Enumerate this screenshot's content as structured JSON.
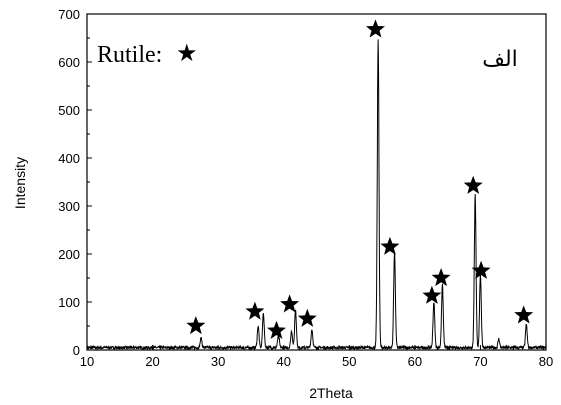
{
  "chart_data": {
    "type": "line",
    "xlabel": "2Theta",
    "ylabel": "Intensity",
    "xlim": [
      10,
      80
    ],
    "ylim": [
      0,
      700
    ],
    "x_ticks": [
      10,
      20,
      30,
      40,
      50,
      60,
      70,
      80
    ],
    "y_ticks": [
      0,
      100,
      200,
      300,
      400,
      500,
      600,
      700
    ],
    "grid": false,
    "legend": {
      "label": "Rutile:",
      "symbol": "★",
      "position": "top-left"
    },
    "corner_label": "الف",
    "series": [
      {
        "color": "#000000",
        "baseline": 5,
        "peaks": [
          {
            "x": 27.4,
            "y": 20
          },
          {
            "x": 36.1,
            "y": 45
          },
          {
            "x": 36.9,
            "y": 72
          },
          {
            "x": 39.2,
            "y": 25
          },
          {
            "x": 41.2,
            "y": 35
          },
          {
            "x": 41.8,
            "y": 80
          },
          {
            "x": 44.3,
            "y": 38
          },
          {
            "x": 54.4,
            "y": 640
          },
          {
            "x": 56.9,
            "y": 200
          },
          {
            "x": 62.9,
            "y": 95
          },
          {
            "x": 64.2,
            "y": 130
          },
          {
            "x": 69.2,
            "y": 318
          },
          {
            "x": 70.0,
            "y": 150
          },
          {
            "x": 72.8,
            "y": 18
          },
          {
            "x": 77.0,
            "y": 48
          }
        ]
      }
    ],
    "markers": [
      {
        "x": 26.6,
        "y": 50
      },
      {
        "x": 35.6,
        "y": 80
      },
      {
        "x": 38.9,
        "y": 40
      },
      {
        "x": 40.9,
        "y": 95
      },
      {
        "x": 43.6,
        "y": 65
      },
      {
        "x": 54.0,
        "y": 668
      },
      {
        "x": 56.2,
        "y": 215
      },
      {
        "x": 62.6,
        "y": 113
      },
      {
        "x": 64.0,
        "y": 150
      },
      {
        "x": 68.9,
        "y": 342
      },
      {
        "x": 70.1,
        "y": 165
      },
      {
        "x": 76.6,
        "y": 72
      }
    ]
  }
}
